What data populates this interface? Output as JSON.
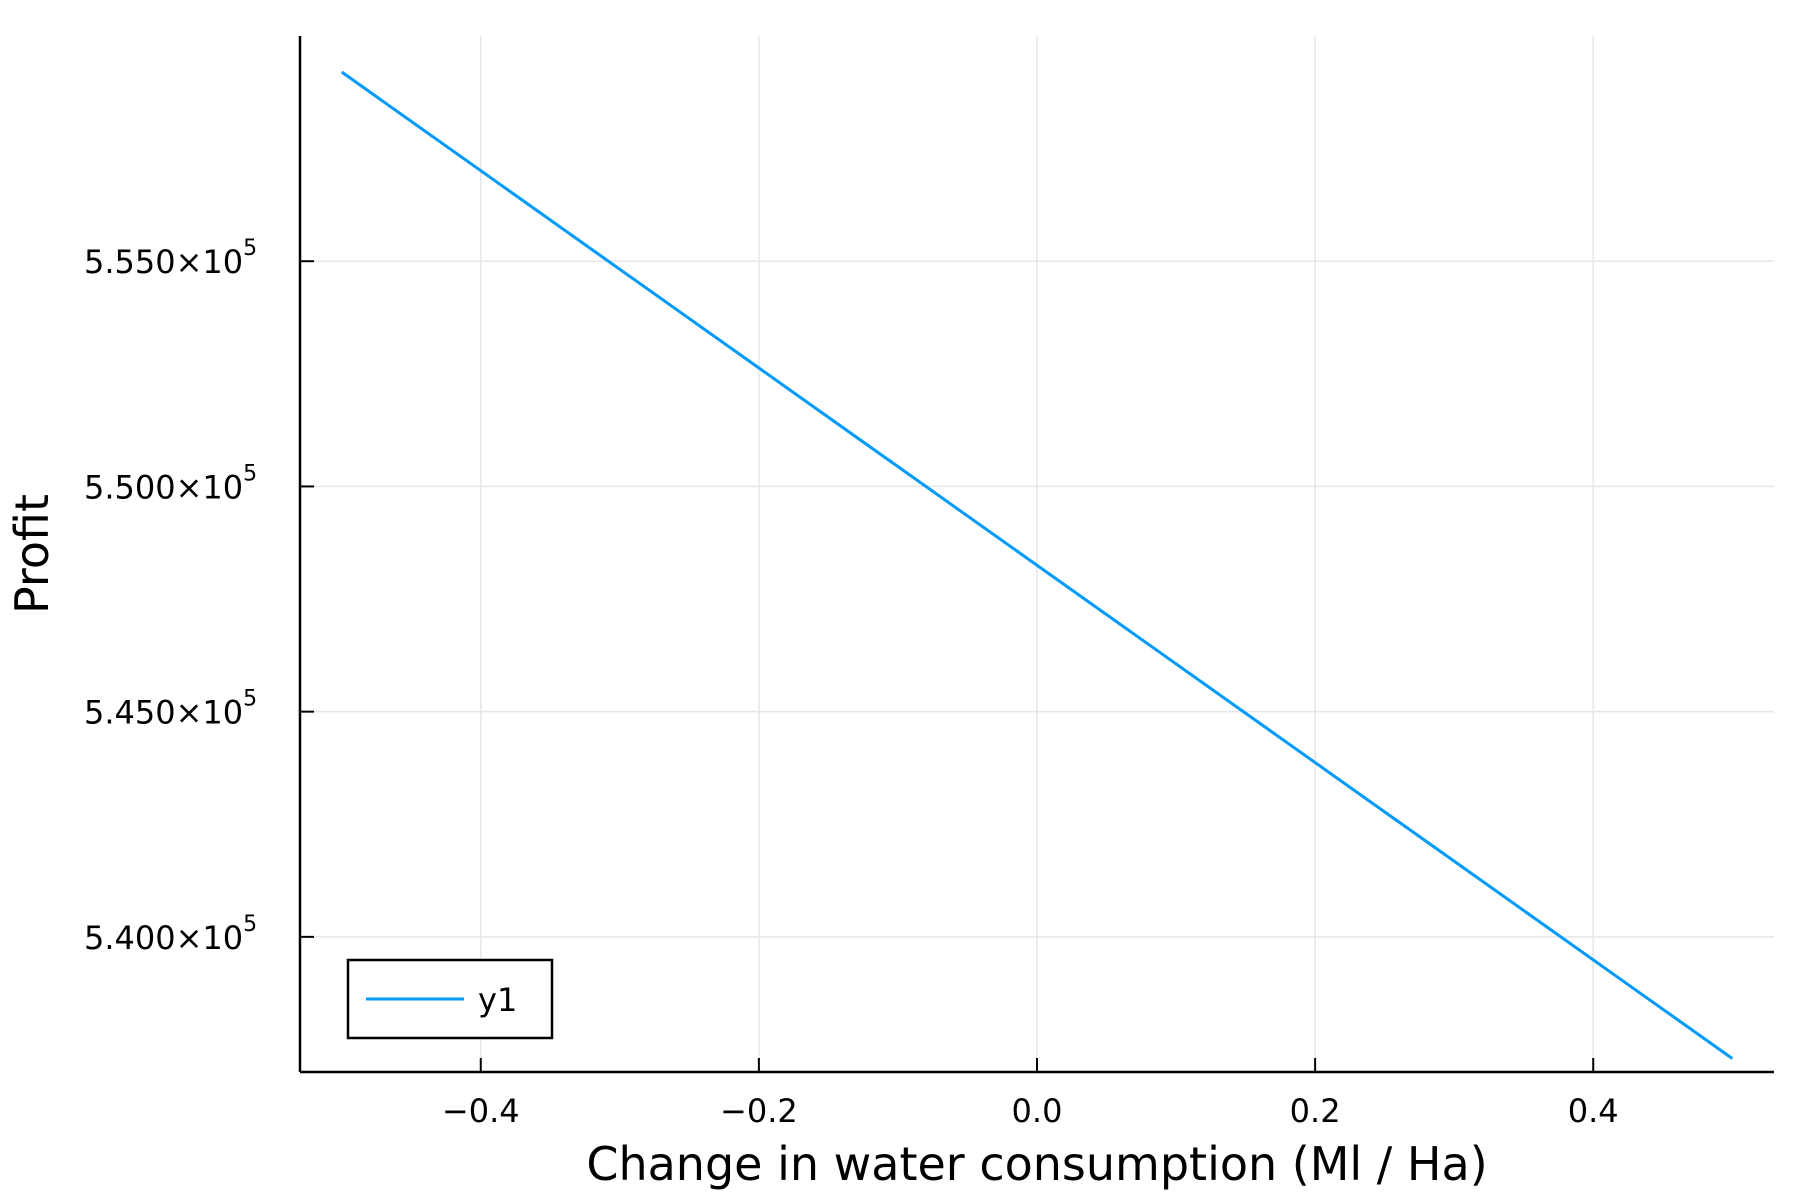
{
  "chart_data": {
    "type": "line",
    "title": "",
    "xlabel": "Change in water consumption (Ml / Ha)",
    "ylabel": "Profit",
    "xlim": [
      -0.53,
      0.53
    ],
    "ylim": [
      537000,
      560000
    ],
    "grid": true,
    "legend_position": "bottom-left",
    "colors": {
      "series": "#009af9",
      "axis": "#000000",
      "grid": "#e6e6e6"
    },
    "x_ticks": [
      {
        "value": -0.4,
        "label": "−0.4"
      },
      {
        "value": -0.2,
        "label": "−0.2"
      },
      {
        "value": 0.0,
        "label": "0.0"
      },
      {
        "value": 0.2,
        "label": "0.2"
      },
      {
        "value": 0.4,
        "label": "0.4"
      }
    ],
    "y_ticks": [
      {
        "value": 540000,
        "mantissa": "5.400×10",
        "exponent": "5"
      },
      {
        "value": 545000,
        "mantissa": "5.450×10",
        "exponent": "5"
      },
      {
        "value": 550000,
        "mantissa": "5.500×10",
        "exponent": "5"
      },
      {
        "value": 555000,
        "mantissa": "5.550×10",
        "exponent": "5"
      }
    ],
    "series": [
      {
        "name": "y1",
        "x": [
          -0.5,
          0.5
        ],
        "y": [
          559200,
          537300
        ]
      }
    ]
  }
}
